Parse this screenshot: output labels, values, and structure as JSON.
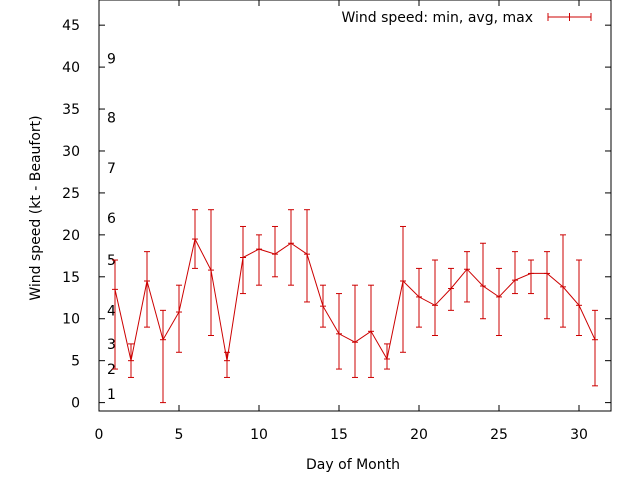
{
  "chart_data": {
    "type": "line",
    "xlabel": "Day of Month",
    "ylabel": "Wind speed (kt - Beaufort)",
    "xlim": [
      0,
      32
    ],
    "ylim": [
      -1,
      48
    ],
    "x_ticks": [
      0,
      5,
      10,
      15,
      20,
      25,
      30
    ],
    "y_ticks": [
      0,
      5,
      10,
      15,
      20,
      25,
      30,
      35,
      40,
      45
    ],
    "x_tick_labels": [
      "0",
      "5",
      "10",
      "15",
      "20",
      "25",
      "30"
    ],
    "y_tick_labels": [
      "0",
      "5",
      "10",
      "15",
      "20",
      "25",
      "30",
      "35",
      "40",
      "45"
    ],
    "beaufort_labels": [
      {
        "label": "1",
        "value": 1
      },
      {
        "label": "2",
        "value": 4
      },
      {
        "label": "3",
        "value": 7
      },
      {
        "label": "4",
        "value": 11
      },
      {
        "label": "5",
        "value": 17
      },
      {
        "label": "6",
        "value": 22
      },
      {
        "label": "7",
        "value": 28
      },
      {
        "label": "8",
        "value": 34
      },
      {
        "label": "9",
        "value": 41
      }
    ],
    "legend": {
      "label": "Wind speed: min, avg, max",
      "position": "top-right"
    },
    "series": [
      {
        "name": "Wind speed: min, avg, max",
        "color": "#cc0000",
        "x": [
          1,
          2,
          3,
          4,
          5,
          6,
          7,
          8,
          9,
          10,
          11,
          12,
          13,
          14,
          15,
          16,
          17,
          18,
          19,
          20,
          21,
          22,
          23,
          24,
          25,
          26,
          27,
          28,
          29,
          30,
          31
        ],
        "avg": [
          13.5,
          5,
          14.5,
          7.5,
          10.8,
          19.5,
          15.8,
          5,
          17.3,
          18.3,
          17.7,
          19,
          17.7,
          11.5,
          8.2,
          7.2,
          8.5,
          5.2,
          14.5,
          12.6,
          11.6,
          13.6,
          15.9,
          13.9,
          12.6,
          14.6,
          15.4,
          15.4,
          13.8,
          11.6,
          7.5
        ],
        "min": [
          4,
          3,
          9,
          0,
          6,
          16,
          8,
          3,
          13,
          14,
          15,
          14,
          12,
          9,
          4,
          3,
          3,
          4,
          6,
          9,
          8,
          11,
          12,
          10,
          8,
          13,
          13,
          10,
          9,
          8,
          2
        ],
        "max": [
          17,
          7,
          18,
          11,
          14,
          23,
          23,
          6,
          21,
          20,
          21,
          23,
          23,
          14,
          13,
          14,
          14,
          7,
          21,
          16,
          17,
          16,
          18,
          19,
          16,
          18,
          17,
          18,
          20,
          17,
          11
        ]
      }
    ]
  }
}
